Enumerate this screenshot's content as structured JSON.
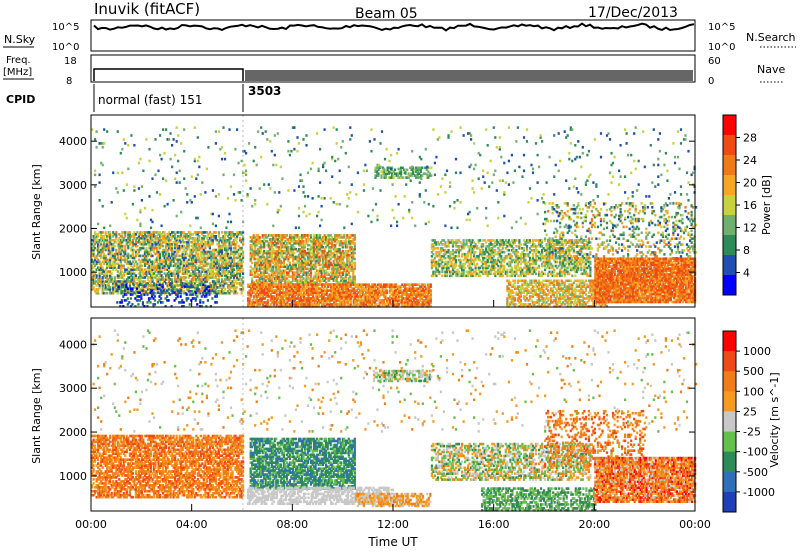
{
  "header": {
    "title": "Inuvik (fitACF)",
    "beam": "Beam 05",
    "date": "17/Dec/2013"
  },
  "strips": {
    "nsky_label": "N.Sky",
    "nsky_ticks": [
      "10^5",
      "10^0"
    ],
    "nsearch_label": "N.Search",
    "nsearch_ticks": [
      "10^5",
      "10^0"
    ],
    "freq_label_1": "Freq.",
    "freq_label_2": "[MHz]",
    "freq_ticks": [
      "18",
      "8"
    ],
    "nave_label": "Nave",
    "nave_ticks": [
      "60",
      "0"
    ],
    "cpid_label": "CPID",
    "cpid_1": "normal (fast) 151",
    "cpid_2": "3503"
  },
  "colors": {
    "power": [
      "#0000ff",
      "#1f4fb0",
      "#2e8b57",
      "#6fb06f",
      "#c8d23a",
      "#f5a623",
      "#f07a18",
      "#ef4b12",
      "#ff0000"
    ],
    "velocity": [
      "#1f3fb5",
      "#2f6fb8",
      "#2e8b57",
      "#63c04a",
      "#c8c8c8",
      "#f59a1e",
      "#f07d18",
      "#f04818",
      "#ff0000"
    ]
  },
  "chart_data": [
    {
      "type": "heatmap",
      "title": "",
      "xlabel": "",
      "ylabel": "Slant Range [km]",
      "colorbar_label": "Power [dB]",
      "colorbar_ticks": [
        "28",
        "24",
        "20",
        "16",
        "12",
        "8",
        "4"
      ],
      "colorbar_range": [
        0,
        32
      ],
      "xlim_hours": [
        0,
        24
      ],
      "ylim": [
        200,
        4600
      ],
      "yticks": [
        "4000",
        "3000",
        "2000",
        "1000"
      ],
      "ytick_values": [
        4000,
        3000,
        2000,
        1000
      ],
      "bands": [
        {
          "t0": 0.0,
          "t1": 6.0,
          "r0": 500,
          "r1": 1900,
          "min": 6,
          "max": 26,
          "density": 0.65
        },
        {
          "t0": 1.0,
          "t1": 5.0,
          "r0": 200,
          "r1": 700,
          "min": 2,
          "max": 10,
          "density": 0.25
        },
        {
          "t0": 6.3,
          "t1": 10.5,
          "r0": 700,
          "r1": 1850,
          "min": 10,
          "max": 30,
          "density": 0.7
        },
        {
          "t0": 6.2,
          "t1": 13.5,
          "r0": 200,
          "r1": 700,
          "min": 20,
          "max": 32,
          "density": 0.8
        },
        {
          "t0": 11.2,
          "t1": 13.5,
          "r0": 3150,
          "r1": 3400,
          "min": 8,
          "max": 18,
          "density": 0.5
        },
        {
          "t0": 13.5,
          "t1": 19.8,
          "r0": 900,
          "r1": 1750,
          "min": 8,
          "max": 24,
          "density": 0.55
        },
        {
          "t0": 16.5,
          "t1": 20.5,
          "r0": 200,
          "r1": 800,
          "min": 14,
          "max": 28,
          "density": 0.6
        },
        {
          "t0": 18.0,
          "t1": 24.0,
          "r0": 1300,
          "r1": 2600,
          "min": 6,
          "max": 26,
          "density": 0.2
        },
        {
          "t0": 20.0,
          "t1": 24.0,
          "r0": 300,
          "r1": 1300,
          "min": 22,
          "max": 32,
          "density": 0.9
        },
        {
          "t0": 0.0,
          "t1": 24.0,
          "r0": 2000,
          "r1": 4300,
          "min": 4,
          "max": 20,
          "density": 0.03
        }
      ]
    },
    {
      "type": "heatmap",
      "title": "",
      "xlabel": "Time UT",
      "ylabel": "Slant Range [km]",
      "colorbar_label": "Velocity [m s^-1]",
      "colorbar_ticks": [
        "1000",
        "500",
        "100",
        "25",
        "-25",
        "-100",
        "-500",
        "-1000"
      ],
      "xlim_hours": [
        0,
        24
      ],
      "ylim": [
        200,
        4600
      ],
      "yticks": [
        "4000",
        "3000",
        "2000",
        "1000"
      ],
      "ytick_values": [
        4000,
        3000,
        2000,
        1000
      ],
      "xticks": [
        "00:00",
        "04:00",
        "08:00",
        "12:00",
        "16:00",
        "20:00",
        "00:00"
      ],
      "xtick_hours": [
        0,
        4,
        8,
        12,
        16,
        20,
        24
      ],
      "bands": [
        {
          "t0": 0.0,
          "t1": 6.0,
          "r0": 500,
          "r1": 1900,
          "min": 5,
          "max": 7,
          "density": 0.65
        },
        {
          "t0": 6.3,
          "t1": 10.5,
          "r0": 700,
          "r1": 1850,
          "min": 1,
          "max": 3,
          "density": 0.7
        },
        {
          "t0": 6.2,
          "t1": 12.0,
          "r0": 350,
          "r1": 750,
          "min": 4,
          "max": 4,
          "density": 0.6
        },
        {
          "t0": 10.5,
          "t1": 13.5,
          "r0": 300,
          "r1": 600,
          "min": 4,
          "max": 6,
          "density": 0.6
        },
        {
          "t0": 11.2,
          "t1": 13.5,
          "r0": 3150,
          "r1": 3400,
          "min": 2,
          "max": 5,
          "density": 0.5
        },
        {
          "t0": 13.5,
          "t1": 19.8,
          "r0": 900,
          "r1": 1750,
          "min": 2,
          "max": 6,
          "density": 0.5
        },
        {
          "t0": 15.5,
          "t1": 20.0,
          "r0": 200,
          "r1": 700,
          "min": 2,
          "max": 3,
          "density": 0.55
        },
        {
          "t0": 18.0,
          "t1": 22.0,
          "r0": 1200,
          "r1": 2500,
          "min": 5,
          "max": 7,
          "density": 0.25
        },
        {
          "t0": 20.0,
          "t1": 24.0,
          "r0": 400,
          "r1": 1400,
          "min": 4,
          "max": 8,
          "density": 0.8
        },
        {
          "t0": 0.0,
          "t1": 24.0,
          "r0": 2000,
          "r1": 4300,
          "min": 3,
          "max": 6,
          "density": 0.03
        }
      ]
    }
  ]
}
